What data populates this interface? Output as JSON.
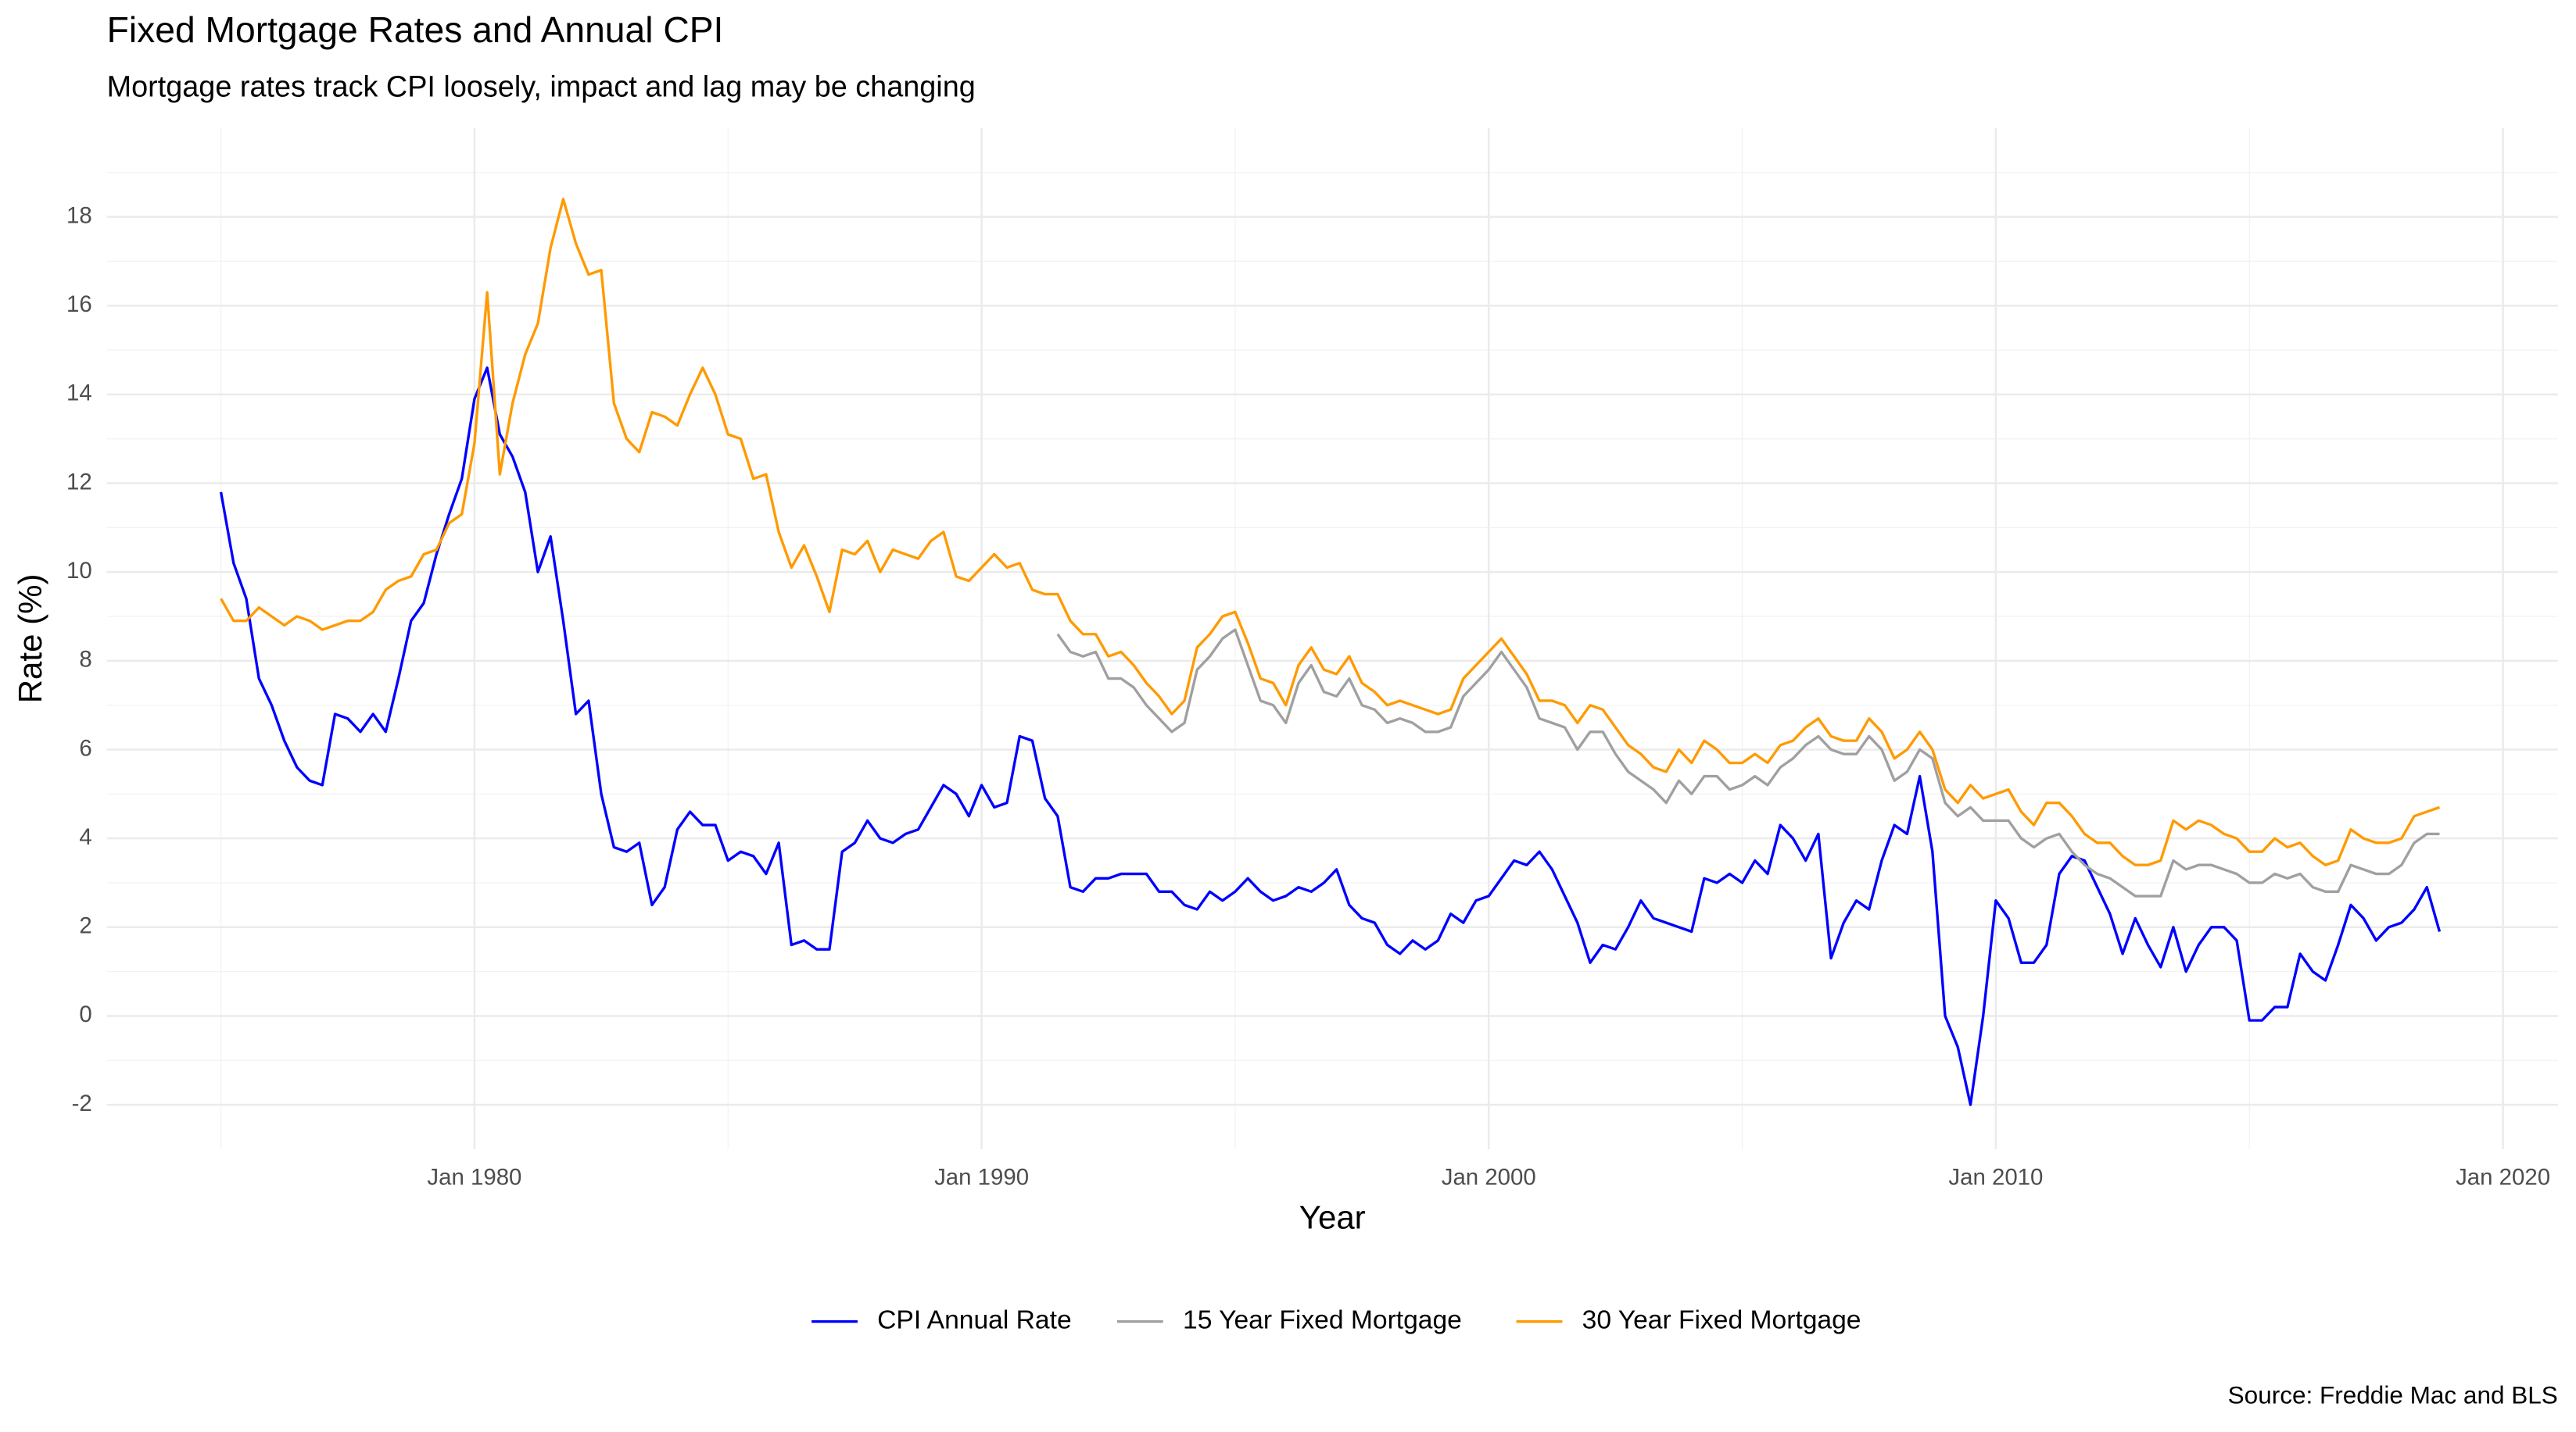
{
  "chart_data": {
    "type": "line",
    "title": "Fixed Mortgage Rates and Annual CPI",
    "subtitle": "Mortgage rates track CPI loosely, impact and lag may be changing",
    "x_label": "Year",
    "y_label": "Rate (%)",
    "caption": "Source: Freddie Mac and BLS",
    "legend_position": "bottom",
    "grid": true,
    "xlim": [
      "1972-10",
      "2021-02"
    ],
    "xticks": [
      {
        "value": "1980-01",
        "label": "Jan 1980"
      },
      {
        "value": "1990-01",
        "label": "Jan 1990"
      },
      {
        "value": "2000-01",
        "label": "Jan 2000"
      },
      {
        "value": "2010-01",
        "label": "Jan 2010"
      },
      {
        "value": "2020-01",
        "label": "Jan 2020"
      }
    ],
    "x_minor_ticks": [
      "1975-01",
      "1985-01",
      "1995-01",
      "2005-01",
      "2015-01"
    ],
    "ylim": [
      -3,
      20
    ],
    "yticks": [
      -2,
      0,
      2,
      4,
      6,
      8,
      10,
      12,
      14,
      16,
      18
    ],
    "y_minor_ticks": [
      -1,
      1,
      3,
      5,
      7,
      9,
      11,
      13,
      15,
      17,
      19
    ],
    "x": [
      "1975-01",
      "1975-04",
      "1975-07",
      "1975-10",
      "1976-01",
      "1976-04",
      "1976-07",
      "1976-10",
      "1977-01",
      "1977-04",
      "1977-07",
      "1977-10",
      "1978-01",
      "1978-04",
      "1978-07",
      "1978-10",
      "1979-01",
      "1979-04",
      "1979-07",
      "1979-10",
      "1980-01",
      "1980-04",
      "1980-07",
      "1980-10",
      "1981-01",
      "1981-04",
      "1981-07",
      "1981-10",
      "1982-01",
      "1982-04",
      "1982-07",
      "1982-10",
      "1983-01",
      "1983-04",
      "1983-07",
      "1983-10",
      "1984-01",
      "1984-04",
      "1984-07",
      "1984-10",
      "1985-01",
      "1985-04",
      "1985-07",
      "1985-10",
      "1986-01",
      "1986-04",
      "1986-07",
      "1986-10",
      "1987-01",
      "1987-04",
      "1987-07",
      "1987-10",
      "1988-01",
      "1988-04",
      "1988-07",
      "1988-10",
      "1989-01",
      "1989-04",
      "1989-07",
      "1989-10",
      "1990-01",
      "1990-04",
      "1990-07",
      "1990-10",
      "1991-01",
      "1991-04",
      "1991-07",
      "1991-10",
      "1992-01",
      "1992-04",
      "1992-07",
      "1992-10",
      "1993-01",
      "1993-04",
      "1993-07",
      "1993-10",
      "1994-01",
      "1994-04",
      "1994-07",
      "1994-10",
      "1995-01",
      "1995-04",
      "1995-07",
      "1995-10",
      "1996-01",
      "1996-04",
      "1996-07",
      "1996-10",
      "1997-01",
      "1997-04",
      "1997-07",
      "1997-10",
      "1998-01",
      "1998-04",
      "1998-07",
      "1998-10",
      "1999-01",
      "1999-04",
      "1999-07",
      "1999-10",
      "2000-01",
      "2000-04",
      "2000-07",
      "2000-10",
      "2001-01",
      "2001-04",
      "2001-07",
      "2001-10",
      "2002-01",
      "2002-04",
      "2002-07",
      "2002-10",
      "2003-01",
      "2003-04",
      "2003-07",
      "2003-10",
      "2004-01",
      "2004-04",
      "2004-07",
      "2004-10",
      "2005-01",
      "2005-04",
      "2005-07",
      "2005-10",
      "2006-01",
      "2006-04",
      "2006-07",
      "2006-10",
      "2007-01",
      "2007-04",
      "2007-07",
      "2007-10",
      "2008-01",
      "2008-04",
      "2008-07",
      "2008-10",
      "2009-01",
      "2009-04",
      "2009-07",
      "2009-10",
      "2010-01",
      "2010-04",
      "2010-07",
      "2010-10",
      "2011-01",
      "2011-04",
      "2011-07",
      "2011-10",
      "2012-01",
      "2012-04",
      "2012-07",
      "2012-10",
      "2013-01",
      "2013-04",
      "2013-07",
      "2013-10",
      "2014-01",
      "2014-04",
      "2014-07",
      "2014-10",
      "2015-01",
      "2015-04",
      "2015-07",
      "2015-10",
      "2016-01",
      "2016-04",
      "2016-07",
      "2016-10",
      "2017-01",
      "2017-04",
      "2017-07",
      "2017-10",
      "2018-01",
      "2018-04",
      "2018-07",
      "2018-10"
    ],
    "series": [
      {
        "name": "CPI Annual Rate",
        "color": "#0000ff",
        "values": [
          11.8,
          10.2,
          9.4,
          7.6,
          7.0,
          6.2,
          5.6,
          5.3,
          5.2,
          6.8,
          6.7,
          6.4,
          6.8,
          6.4,
          7.6,
          8.9,
          9.3,
          10.4,
          11.3,
          12.1,
          13.9,
          14.6,
          13.1,
          12.6,
          11.8,
          10.0,
          10.8,
          8.9,
          6.8,
          7.1,
          5.0,
          3.8,
          3.7,
          3.9,
          2.5,
          2.9,
          4.2,
          4.6,
          4.3,
          4.3,
          3.5,
          3.7,
          3.6,
          3.2,
          3.9,
          1.6,
          1.7,
          1.5,
          1.5,
          3.7,
          3.9,
          4.4,
          4.0,
          3.9,
          4.1,
          4.2,
          4.7,
          5.2,
          5.0,
          4.5,
          5.2,
          4.7,
          4.8,
          6.3,
          6.2,
          4.9,
          4.5,
          2.9,
          2.8,
          3.1,
          3.1,
          3.2,
          3.2,
          3.2,
          2.8,
          2.8,
          2.5,
          2.4,
          2.8,
          2.6,
          2.8,
          3.1,
          2.8,
          2.6,
          2.7,
          2.9,
          2.8,
          3.0,
          3.3,
          2.5,
          2.2,
          2.1,
          1.6,
          1.4,
          1.7,
          1.5,
          1.7,
          2.3,
          2.1,
          2.6,
          2.7,
          3.1,
          3.5,
          3.4,
          3.7,
          3.3,
          2.7,
          2.1,
          1.2,
          1.6,
          1.5,
          2.0,
          2.6,
          2.2,
          2.1,
          2.0,
          1.9,
          3.1,
          3.0,
          3.2,
          3.0,
          3.5,
          3.2,
          4.3,
          4.0,
          3.5,
          4.1,
          1.3,
          2.1,
          2.6,
          2.4,
          3.5,
          4.3,
          4.1,
          5.4,
          3.7,
          0.0,
          -0.7,
          -2.0,
          0.0,
          2.6,
          2.2,
          1.2,
          1.2,
          1.6,
          3.2,
          3.6,
          3.5,
          2.9,
          2.3,
          1.4,
          2.2,
          1.6,
          1.1,
          2.0,
          1.0,
          1.6,
          2.0,
          2.0,
          1.7,
          -0.1,
          -0.1,
          0.2,
          0.2,
          1.4,
          1.0,
          0.8,
          1.6,
          2.5,
          2.2,
          1.7,
          2.0,
          2.1,
          2.4,
          2.9,
          1.9
        ]
      },
      {
        "name": "15 Year Fixed Mortgage",
        "color": "#a0a0a0",
        "values": [
          null,
          null,
          null,
          null,
          null,
          null,
          null,
          null,
          null,
          null,
          null,
          null,
          null,
          null,
          null,
          null,
          null,
          null,
          null,
          null,
          null,
          null,
          null,
          null,
          null,
          null,
          null,
          null,
          null,
          null,
          null,
          null,
          null,
          null,
          null,
          null,
          null,
          null,
          null,
          null,
          null,
          null,
          null,
          null,
          null,
          null,
          null,
          null,
          null,
          null,
          null,
          null,
          null,
          null,
          null,
          null,
          null,
          null,
          null,
          null,
          null,
          null,
          null,
          null,
          null,
          null,
          8.6,
          8.2,
          8.1,
          8.2,
          7.6,
          7.6,
          7.4,
          7.0,
          6.7,
          6.4,
          6.6,
          7.8,
          8.1,
          8.5,
          8.7,
          7.9,
          7.1,
          7.0,
          6.6,
          7.5,
          7.9,
          7.3,
          7.2,
          7.6,
          7.0,
          6.9,
          6.6,
          6.7,
          6.6,
          6.4,
          6.4,
          6.5,
          7.2,
          7.5,
          7.8,
          8.2,
          7.8,
          7.4,
          6.7,
          6.6,
          6.5,
          6.0,
          6.4,
          6.4,
          5.9,
          5.5,
          5.3,
          5.1,
          4.8,
          5.3,
          5.0,
          5.4,
          5.4,
          5.1,
          5.2,
          5.4,
          5.2,
          5.6,
          5.8,
          6.1,
          6.3,
          6.0,
          5.9,
          5.9,
          6.3,
          6.0,
          5.3,
          5.5,
          6.0,
          5.8,
          4.8,
          4.5,
          4.7,
          4.4,
          4.4,
          4.4,
          4.0,
          3.8,
          4.0,
          4.1,
          3.7,
          3.4,
          3.2,
          3.1,
          2.9,
          2.7,
          2.7,
          2.7,
          3.5,
          3.3,
          3.4,
          3.4,
          3.3,
          3.2,
          3.0,
          3.0,
          3.2,
          3.1,
          3.2,
          2.9,
          2.8,
          2.8,
          3.4,
          3.3,
          3.2,
          3.2,
          3.4,
          3.9,
          4.1,
          4.1
        ]
      },
      {
        "name": "30 Year Fixed Mortgage",
        "color": "#ff9a00",
        "values": [
          9.4,
          8.9,
          8.9,
          9.2,
          9.0,
          8.8,
          9.0,
          8.9,
          8.7,
          8.8,
          8.9,
          8.9,
          9.1,
          9.6,
          9.8,
          9.9,
          10.4,
          10.5,
          11.1,
          11.3,
          12.9,
          16.3,
          12.2,
          13.8,
          14.9,
          15.6,
          17.3,
          18.4,
          17.4,
          16.7,
          16.8,
          13.8,
          13.0,
          12.7,
          13.6,
          13.5,
          13.3,
          14.0,
          14.6,
          14.0,
          13.1,
          13.0,
          12.1,
          12.2,
          10.9,
          10.1,
          10.6,
          9.9,
          9.1,
          10.5,
          10.4,
          10.7,
          10.0,
          10.5,
          10.4,
          10.3,
          10.7,
          10.9,
          9.9,
          9.8,
          10.1,
          10.4,
          10.1,
          10.2,
          9.6,
          9.5,
          9.5,
          8.9,
          8.6,
          8.6,
          8.1,
          8.2,
          7.9,
          7.5,
          7.2,
          6.8,
          7.1,
          8.3,
          8.6,
          9.0,
          9.1,
          8.4,
          7.6,
          7.5,
          7.0,
          7.9,
          8.3,
          7.8,
          7.7,
          8.1,
          7.5,
          7.3,
          7.0,
          7.1,
          7.0,
          6.9,
          6.8,
          6.9,
          7.6,
          7.9,
          8.2,
          8.5,
          8.1,
          7.7,
          7.1,
          7.1,
          7.0,
          6.6,
          7.0,
          6.9,
          6.5,
          6.1,
          5.9,
          5.6,
          5.5,
          6.0,
          5.7,
          6.2,
          6.0,
          5.7,
          5.7,
          5.9,
          5.7,
          6.1,
          6.2,
          6.5,
          6.7,
          6.3,
          6.2,
          6.2,
          6.7,
          6.4,
          5.8,
          6.0,
          6.4,
          6.0,
          5.1,
          4.8,
          5.2,
          4.9,
          5.0,
          5.1,
          4.6,
          4.3,
          4.8,
          4.8,
          4.5,
          4.1,
          3.9,
          3.9,
          3.6,
          3.4,
          3.4,
          3.5,
          4.4,
          4.2,
          4.4,
          4.3,
          4.1,
          4.0,
          3.7,
          3.7,
          4.0,
          3.8,
          3.9,
          3.6,
          3.4,
          3.5,
          4.2,
          4.0,
          3.9,
          3.9,
          4.0,
          4.5,
          4.6,
          4.7
        ]
      }
    ]
  }
}
